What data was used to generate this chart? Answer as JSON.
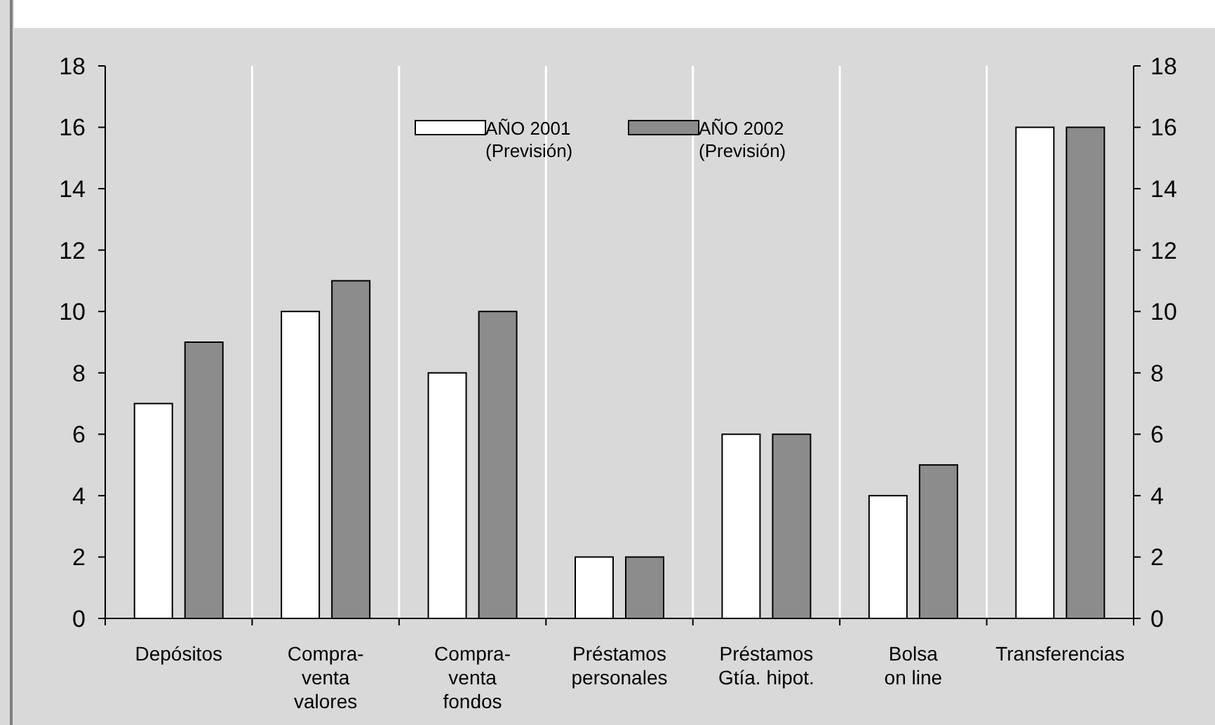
{
  "chart_data": {
    "type": "bar",
    "categories": [
      "Depósitos",
      "Compra-\nventa\nvalores",
      "Compra-\nventa\nfondos",
      "Préstamos\npersonales",
      "Préstamos\nGtía. hipot.",
      "Bolsa\non line",
      "Transferencias"
    ],
    "series": [
      {
        "name": "AÑO 2001\n(Previsión)",
        "color": "#ffffff",
        "values": [
          7,
          10,
          8,
          2,
          6,
          4,
          16
        ]
      },
      {
        "name": "AÑO 2002\n(Previsión)",
        "color": "#8c8c8c",
        "values": [
          9,
          11,
          10,
          2,
          6,
          5,
          16
        ]
      }
    ],
    "ylim": [
      0,
      18
    ],
    "yticks": [
      0,
      2,
      4,
      6,
      8,
      10,
      12,
      14,
      16,
      18
    ],
    "y2lim": [
      0,
      18
    ],
    "y2ticks": [
      0,
      2,
      4,
      6,
      8,
      10,
      12,
      14,
      16,
      18
    ],
    "grid": "x",
    "legend": "top"
  }
}
